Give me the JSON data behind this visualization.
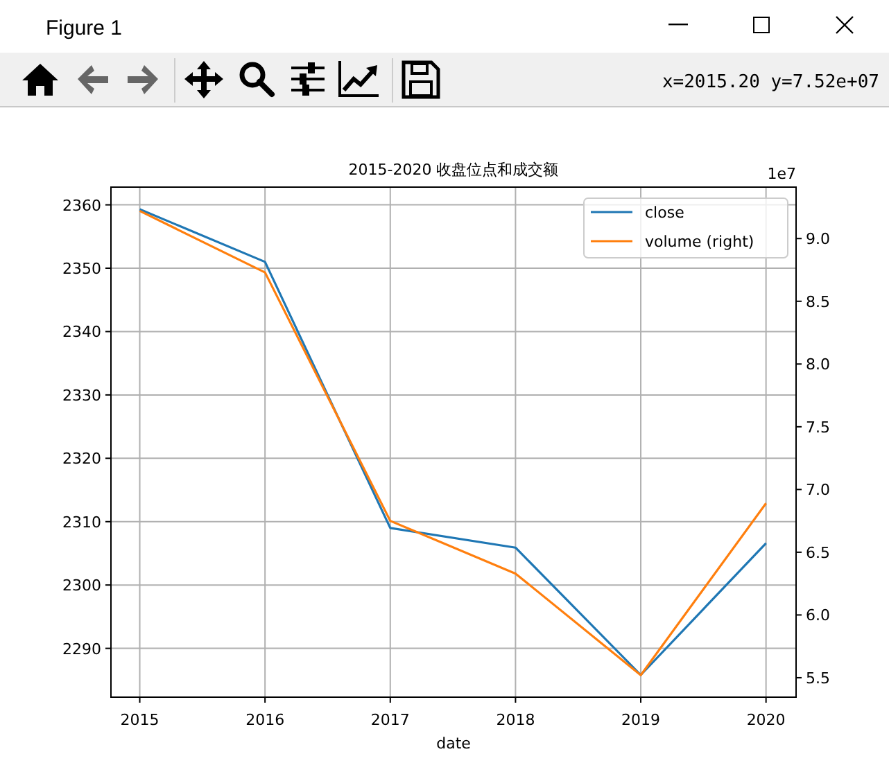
{
  "chart_data": {
    "type": "line",
    "title": "2015-2020 收盘位点和成交额",
    "xlabel": "date",
    "x": [
      2015,
      2016,
      2017,
      2018,
      2019,
      2020
    ],
    "xlim": [
      2014.77,
      2020.24
    ],
    "xticks": [
      2015,
      2016,
      2017,
      2018,
      2019,
      2020
    ],
    "ylim": [
      2282.3,
      2362.8
    ],
    "yticks": [
      2290,
      2300,
      2310,
      2320,
      2330,
      2340,
      2350,
      2360
    ],
    "y2lim": [
      5.345,
      9.41
    ],
    "y2ticks": [
      {
        "value": 5.5,
        "label": "5.5"
      },
      {
        "value": 6,
        "label": "6.0"
      },
      {
        "value": 6.5,
        "label": "6.5"
      },
      {
        "value": 7,
        "label": "7.0"
      },
      {
        "value": 7.5,
        "label": "7.5"
      },
      {
        "value": 8,
        "label": "8.0"
      },
      {
        "value": 8.5,
        "label": "8.5"
      },
      {
        "value": 9,
        "label": "9.0"
      }
    ],
    "series": [
      {
        "name": "close",
        "color": "#1f77b4",
        "values": [
          2359.3,
          2351.0,
          2309.0,
          2305.9,
          2285.8,
          2306.6
        ]
      },
      {
        "name": "volume (right)",
        "color": "#ff7f0e",
        "axis": "y2",
        "values": [
          9.22,
          8.73,
          6.75,
          6.33,
          5.52,
          6.89
        ]
      }
    ],
    "grid": true,
    "legend": "top right",
    "line_style": "solid",
    "marker": "none",
    "annotations": [
      "Figure 1",
      "x=2015.20 y=7.52e+07",
      "1e7"
    ]
  }
}
